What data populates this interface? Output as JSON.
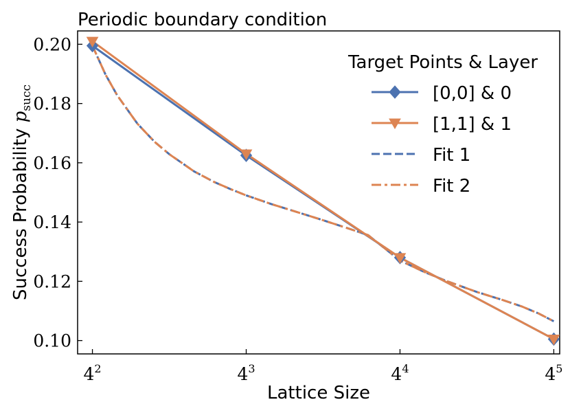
{
  "chart_data": {
    "type": "line",
    "title": "Periodic boundary condition",
    "xlabel": "Lattice Size",
    "ylabel": "Success Probability",
    "ylabel_symbol": "p",
    "ylabel_subscript": "succ",
    "x": [
      16,
      64,
      256,
      1024
    ],
    "xlim": [
      14,
      1080
    ],
    "ylim": [
      0.0955,
      0.2045
    ],
    "xticks": [
      {
        "value": 16,
        "base": "4",
        "exp": "2"
      },
      {
        "value": 64,
        "base": "4",
        "exp": "3"
      },
      {
        "value": 256,
        "base": "4",
        "exp": "4"
      },
      {
        "value": 1024,
        "base": "4",
        "exp": "5"
      }
    ],
    "yticks": [
      {
        "value": 0.1,
        "label": "0.10"
      },
      {
        "value": 0.12,
        "label": "0.12"
      },
      {
        "value": 0.14,
        "label": "0.14"
      },
      {
        "value": 0.16,
        "label": "0.16"
      },
      {
        "value": 0.18,
        "label": "0.18"
      },
      {
        "value": 0.2,
        "label": "0.20"
      }
    ],
    "series": [
      {
        "name": "[0,0] & 0",
        "values": [
          0.1995,
          0.1625,
          0.128,
          0.1005
        ],
        "color": "#4c72b0",
        "marker": "diamond",
        "dash": "solid"
      },
      {
        "name": "[1,1] & 1",
        "values": [
          0.201,
          0.163,
          0.128,
          0.1005
        ],
        "color": "#dd8452",
        "marker": "triangle-down",
        "dash": "solid"
      }
    ],
    "fits": [
      {
        "name": "Fit 1",
        "color": "#4c72b0",
        "dash": "dashed",
        "x": [
          16,
          18,
          20,
          24,
          28,
          32,
          40,
          48,
          56,
          64,
          80,
          96,
          128,
          160,
          192,
          256,
          320,
          384,
          512,
          640,
          768,
          896,
          1024
        ],
        "values": [
          0.1995,
          0.1898,
          0.1828,
          0.1732,
          0.1671,
          0.1629,
          0.1571,
          0.1535,
          0.151,
          0.149,
          0.1461,
          0.144,
          0.1406,
          0.1379,
          0.1356,
          0.127,
          0.1231,
          0.1203,
          0.1164,
          0.1138,
          0.1115,
          0.1091,
          0.1065
        ]
      },
      {
        "name": "Fit 2",
        "color": "#dd8452",
        "dash": "dashdot",
        "x": [
          16,
          18,
          20,
          24,
          28,
          32,
          40,
          48,
          56,
          64,
          80,
          96,
          128,
          160,
          192,
          256,
          320,
          384,
          512,
          640,
          768,
          896,
          1024
        ],
        "values": [
          0.1995,
          0.1898,
          0.1828,
          0.1732,
          0.1671,
          0.1629,
          0.1571,
          0.1535,
          0.151,
          0.149,
          0.1461,
          0.144,
          0.1406,
          0.1379,
          0.1356,
          0.127,
          0.1231,
          0.1203,
          0.1164,
          0.1138,
          0.1115,
          0.1091,
          0.1065
        ]
      }
    ],
    "legend": {
      "title": "Target Points & Layer",
      "placement": "top-right",
      "entries": [
        "[0,0] & 0",
        "[1,1] & 1",
        "Fit 1",
        "Fit 2"
      ]
    },
    "grid": false
  }
}
